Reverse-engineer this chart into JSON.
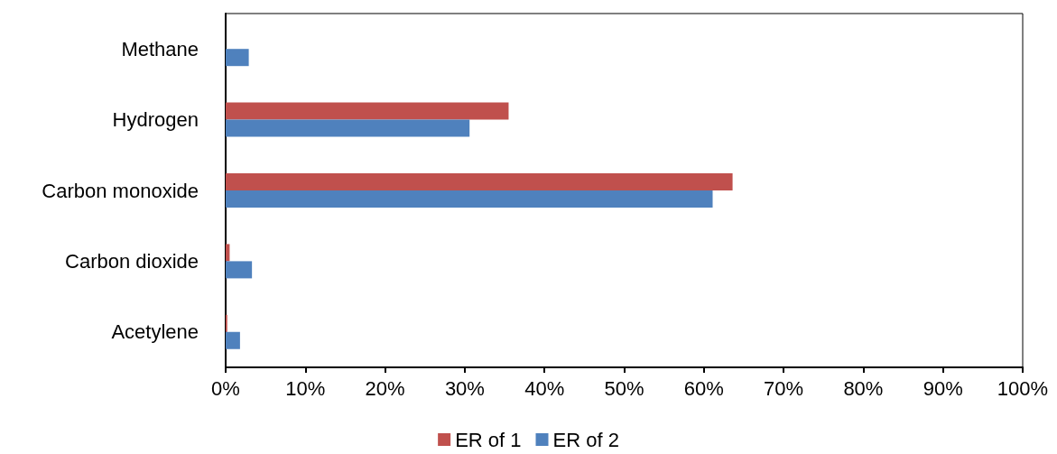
{
  "chart_data": {
    "type": "bar",
    "orientation": "horizontal",
    "categories": [
      "Methane",
      "Hydrogen",
      "Carbon monoxide",
      "Carbon dioxide",
      "Acetylene"
    ],
    "series": [
      {
        "name": "ER of 1",
        "color": "#c0504d",
        "values": [
          0,
          35.5,
          63.6,
          0.5,
          0.2
        ]
      },
      {
        "name": "ER of 2",
        "color": "#4f81bd",
        "values": [
          2.9,
          30.6,
          61.1,
          3.3,
          1.8
        ]
      }
    ],
    "xlim": [
      0,
      100
    ],
    "xticks": [
      {
        "value": 0,
        "label": "0%"
      },
      {
        "value": 10,
        "label": "10%"
      },
      {
        "value": 20,
        "label": "20%"
      },
      {
        "value": 30,
        "label": "30%"
      },
      {
        "value": 40,
        "label": "40%"
      },
      {
        "value": 50,
        "label": "50%"
      },
      {
        "value": 60,
        "label": "60%"
      },
      {
        "value": 70,
        "label": "70%"
      },
      {
        "value": 80,
        "label": "80%"
      },
      {
        "value": 90,
        "label": "90%"
      },
      {
        "value": 100,
        "label": "100%"
      }
    ],
    "grid": false,
    "legend": "bottom"
  }
}
